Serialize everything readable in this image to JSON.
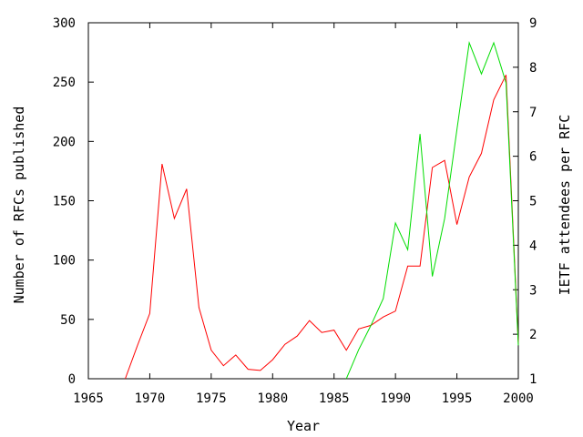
{
  "chart_data": {
    "type": "line",
    "xlabel": "Year",
    "ylabel_left": "Number of RFCs published",
    "ylabel_right": "IETF attendees per RFC",
    "xlim": [
      1965,
      2000
    ],
    "ylim_left": [
      0,
      300
    ],
    "ylim_right": [
      1,
      9
    ],
    "x_ticks": [
      1965,
      1970,
      1975,
      1980,
      1985,
      1990,
      1995,
      2000
    ],
    "y_ticks_left": [
      0,
      50,
      100,
      150,
      200,
      250,
      300
    ],
    "y_ticks_right": [
      1,
      2,
      3,
      4,
      5,
      6,
      7,
      8,
      9
    ],
    "grid": false,
    "legend": "none",
    "series": [
      {
        "axis": "left",
        "color": "#ff0000",
        "x": [
          1968,
          1969,
          1970,
          1971,
          1972,
          1973,
          1974,
          1975,
          1976,
          1977,
          1978,
          1979,
          1980,
          1981,
          1982,
          1983,
          1984,
          1985,
          1986,
          1987,
          1988,
          1989,
          1990,
          1991,
          1992,
          1993,
          1994,
          1995,
          1996,
          1997,
          1998,
          1999,
          2000
        ],
        "values": [
          0,
          28,
          55,
          181,
          135,
          160,
          60,
          24,
          11,
          20,
          8,
          7,
          16,
          29,
          36,
          49,
          39,
          41,
          24,
          42,
          45,
          52,
          57,
          95,
          95,
          178,
          184,
          130,
          170,
          190,
          235,
          256,
          30
        ]
      },
      {
        "axis": "right",
        "color": "#00dd00",
        "x": [
          1986,
          1987,
          1988,
          1989,
          1990,
          1991,
          1992,
          1993,
          1994,
          1995,
          1996,
          1997,
          1998,
          1999,
          2000
        ],
        "values": [
          1.0,
          1.65,
          2.2,
          2.8,
          4.5,
          3.9,
          6.5,
          3.3,
          4.6,
          6.6,
          8.55,
          7.85,
          8.55,
          7.65,
          1.75
        ]
      }
    ]
  }
}
